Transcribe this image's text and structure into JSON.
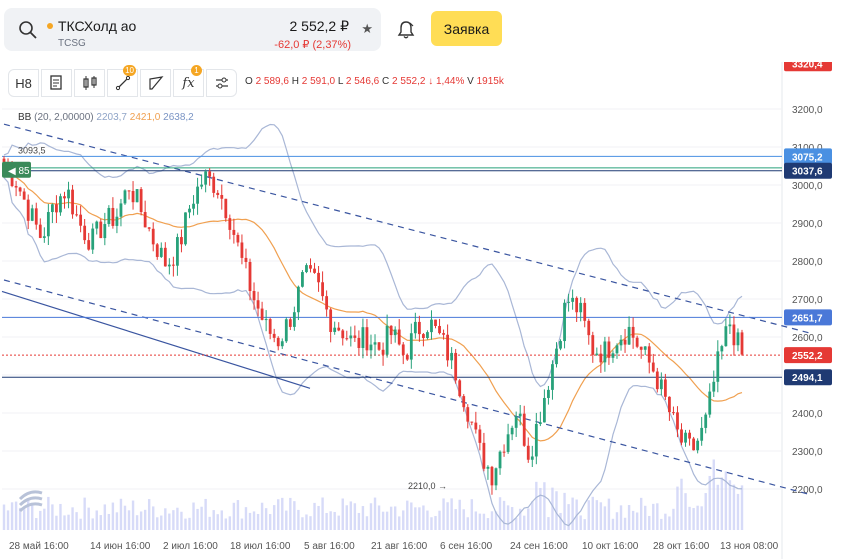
{
  "ticker": {
    "name": "ТКСХолд ао",
    "code": "TCSG",
    "price": "2 552,2 ₽",
    "change": "-62,0 ₽ (2,37%)"
  },
  "actions": {
    "order_label": "Заявка"
  },
  "toolbar": {
    "interval": "H8",
    "indicators_badge": "10",
    "fx_badge": "1"
  },
  "ohlc": {
    "o_label": "O",
    "o": "2 589,6",
    "h_label": "H",
    "h": "2 591,0",
    "l_label": "L",
    "l": "2 546,6",
    "c_label": "C",
    "c": "2 552,2",
    "chg": "1,44%",
    "v_label": "V",
    "v": "1915k"
  },
  "bb": {
    "label": "BB",
    "params": "(20, 2,00000)",
    "v1": "2203,7",
    "v2": "2421,0",
    "v3": "2638,2"
  },
  "colors": {
    "up": "#27a17a",
    "down": "#e53935",
    "ma": "#f0a050",
    "band": "#a9b7d6",
    "channel": "#3a55a0",
    "volume": "#c6ccf5"
  },
  "chart_data": {
    "type": "candlestick",
    "y_axis": {
      "min": 2140,
      "max": 3220,
      "ticks": [
        "3200,0",
        "3100,0",
        "3000,0",
        "2900,0",
        "2800,0",
        "2700,0",
        "2600,0",
        "2500,0",
        "2400,0",
        "2300,0",
        "2200,0"
      ]
    },
    "x_labels": [
      "28 май 16:00",
      "14 июн 16:00",
      "2 июл 16:00",
      "18 июл 16:00",
      "5 авг 16:00",
      "21 авг 16:00",
      "6 сен 16:00",
      "24 сен 16:00",
      "10 окт 16:00",
      "28 окт 16:00",
      "13 ноя 08:00"
    ],
    "price_badges": [
      {
        "value": 3320.4,
        "label": "3320,4",
        "color": "#e53935"
      },
      {
        "value": 3075.2,
        "label": "3075,2",
        "color": "#4a90e2"
      },
      {
        "value": 3037.6,
        "label": "3037,6",
        "color": "#1f3a73"
      },
      {
        "value": 2651.7,
        "label": "2651,7",
        "color": "#4a78d8"
      },
      {
        "value": 2552.2,
        "label": "2552,2",
        "color": "#e53935"
      },
      {
        "value": 2494.1,
        "label": "2494,1",
        "color": "#1f3a73"
      }
    ],
    "horizontal_lines": [
      {
        "value": 3075.2,
        "color": "#4a90e2"
      },
      {
        "value": 3037.6,
        "color": "#1f3a73"
      },
      {
        "value": 3045,
        "color": "#27a17a"
      },
      {
        "value": 2651.7,
        "color": "#4a78d8"
      },
      {
        "value": 2494.1,
        "color": "#1f3a73"
      }
    ],
    "annotations": [
      {
        "label": "3093,5",
        "value": 3093.5,
        "index": 1
      },
      {
        "label": "2210,0",
        "value": 2210.0,
        "index": 112
      }
    ],
    "alert_badge": {
      "label": "85",
      "value": 3040
    },
    "key_points": [
      3050,
      3010,
      2930,
      2860,
      2950,
      2990,
      2900,
      2850,
      2900,
      2920,
      3000,
      2930,
      2850,
      2790,
      2840,
      2960,
      3020,
      3000,
      2920,
      2800,
      2700,
      2620,
      2590,
      2660,
      2760,
      2740,
      2650,
      2620,
      2580,
      2600,
      2570,
      2610,
      2550,
      2620,
      2640,
      2590,
      2520,
      2420,
      2300,
      2240,
      2330,
      2410,
      2290,
      2420,
      2550,
      2700,
      2670,
      2570,
      2560,
      2600,
      2620,
      2560,
      2510,
      2420,
      2330,
      2300,
      2360,
      2520,
      2640,
      2550
    ],
    "candle_count": 184,
    "bollinger": {
      "mid_offset": 0,
      "band_width": 160
    },
    "channel_lines": [
      {
        "from_index": 0,
        "from_value": 3160,
        "to_index": 200,
        "to_value": 2610,
        "dashed": true
      },
      {
        "from_index": 0,
        "from_value": 2750,
        "to_index": 200,
        "to_value": 2185,
        "dashed": true
      }
    ],
    "volume_max": 1
  }
}
